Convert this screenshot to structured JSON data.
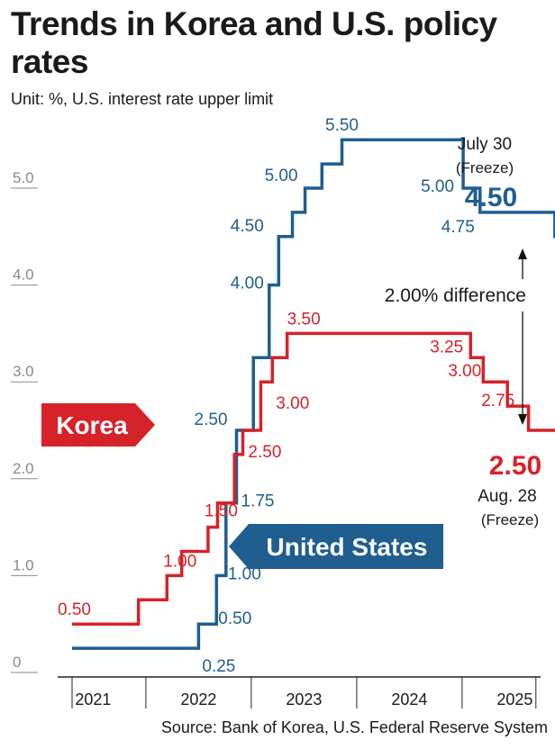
{
  "title": "Trends in Korea and U.S. policy rates",
  "unit": "Unit: %, U.S. interest rate upper limit",
  "source": "Source: Bank of Korea, U.S. Federal Reserve System",
  "colors": {
    "us": "#1f5e8e",
    "korea": "#d62229",
    "axis": "#8a8a8a"
  },
  "chart_data": {
    "type": "line",
    "step": true,
    "y_ticks": [
      "0",
      "1.0",
      "2.0",
      "3.0",
      "4.0",
      "5.0"
    ],
    "x_ticks": [
      "2021",
      "2022",
      "2023",
      "2024",
      "2025"
    ],
    "ylim": [
      0,
      5.5
    ],
    "series": [
      {
        "name": "United States",
        "key": "us",
        "points": [
          {
            "t": 2021.0,
            "v": 0.25
          },
          {
            "t": 2022.2,
            "v": 0.5
          },
          {
            "t": 2022.37,
            "v": 1.0
          },
          {
            "t": 2022.46,
            "v": 1.75
          },
          {
            "t": 2022.56,
            "v": 2.5
          },
          {
            "t": 2022.72,
            "v": 3.25
          },
          {
            "t": 2022.87,
            "v": 4.0
          },
          {
            "t": 2022.96,
            "v": 4.5
          },
          {
            "t": 2023.09,
            "v": 4.75
          },
          {
            "t": 2023.21,
            "v": 5.0
          },
          {
            "t": 2023.37,
            "v": 5.25
          },
          {
            "t": 2023.56,
            "v": 5.5
          },
          {
            "t": 2024.71,
            "v": 5.0
          },
          {
            "t": 2024.87,
            "v": 4.75
          },
          {
            "t": 2025.58,
            "v": 4.5
          }
        ],
        "labels": [
          {
            "text": "0.25",
            "t": 2022.2,
            "v": 0.25
          },
          {
            "text": "0.50",
            "t": 2022.37,
            "v": 0.5
          },
          {
            "text": "1.00",
            "t": 2022.46,
            "v": 1.0
          },
          {
            "text": "1.75",
            "t": 2022.56,
            "v": 1.75
          },
          {
            "text": "2.50",
            "t": 2022.56,
            "v": 2.5
          },
          {
            "text": "4.00",
            "t": 2022.87,
            "v": 4.0
          },
          {
            "text": "4.50",
            "t": 2022.87,
            "v": 4.5
          },
          {
            "text": "5.00",
            "t": 2023.21,
            "v": 5.0
          },
          {
            "text": "5.50",
            "t": 2023.56,
            "v": 5.5
          },
          {
            "text": "5.00",
            "t": 2024.71,
            "v": 5.0
          },
          {
            "text": "4.75",
            "t": 2024.87,
            "v": 4.75
          }
        ]
      },
      {
        "name": "Korea",
        "key": "korea",
        "points": [
          {
            "t": 2021.0,
            "v": 0.5
          },
          {
            "t": 2021.63,
            "v": 0.75
          },
          {
            "t": 2021.9,
            "v": 1.0
          },
          {
            "t": 2022.04,
            "v": 1.25
          },
          {
            "t": 2022.29,
            "v": 1.5
          },
          {
            "t": 2022.38,
            "v": 1.75
          },
          {
            "t": 2022.54,
            "v": 2.25
          },
          {
            "t": 2022.62,
            "v": 2.5
          },
          {
            "t": 2022.79,
            "v": 3.0
          },
          {
            "t": 2022.9,
            "v": 3.25
          },
          {
            "t": 2023.04,
            "v": 3.5
          },
          {
            "t": 2024.78,
            "v": 3.25
          },
          {
            "t": 2024.9,
            "v": 3.0
          },
          {
            "t": 2025.13,
            "v": 2.75
          },
          {
            "t": 2025.33,
            "v": 2.5
          },
          {
            "t": 2025.66,
            "v": 2.5
          }
        ],
        "labels": [
          {
            "text": "0.50",
            "t": 2021.0,
            "v": 0.5
          },
          {
            "text": "1.00",
            "t": 2021.9,
            "v": 1.0
          },
          {
            "text": "1.50",
            "t": 2022.29,
            "v": 1.5
          },
          {
            "text": "2.50",
            "t": 2022.79,
            "v": 2.5
          },
          {
            "text": "3.00",
            "t": 2022.9,
            "v": 3.0
          },
          {
            "text": "3.50",
            "t": 2023.04,
            "v": 3.5
          },
          {
            "text": "3.25",
            "t": 2024.78,
            "v": 3.25
          },
          {
            "text": "3.00",
            "t": 2024.9,
            "v": 3.0
          },
          {
            "text": "2.75",
            "t": 2025.13,
            "v": 2.75
          }
        ]
      }
    ],
    "annotations": {
      "us_latest": {
        "date": "July 30",
        "status": "(Freeze)",
        "value": "4.50"
      },
      "korea_latest": {
        "value": "2.50",
        "date": "Aug. 28",
        "status": "(Freeze)"
      },
      "difference": "2.00% difference",
      "korea_tag": "Korea",
      "us_tag": "United States"
    }
  }
}
